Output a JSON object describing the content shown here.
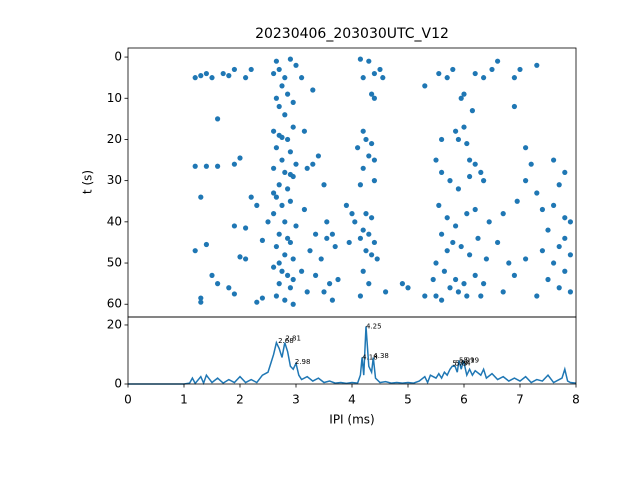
{
  "chart_data": [
    {
      "type": "scatter",
      "title": "20230406_203030UTC_V12",
      "ylabel": "t (s)",
      "color": "#1f77b4",
      "x": [
        1.2,
        1.3,
        1.4,
        1.5,
        1.7,
        1.8,
        1.9,
        2.1,
        1.2,
        1.4,
        1.6,
        1.6,
        2.0,
        1.3,
        1.9,
        2.2,
        1.9,
        2.1,
        2.3,
        1.2,
        1.4,
        1.5,
        1.3,
        1.3,
        1.6,
        1.8,
        2.0,
        2.1,
        1.9,
        2.3,
        2.4,
        2.5,
        2.4,
        2.2,
        2.65,
        2.7,
        2.8,
        2.9,
        3.0,
        2.6,
        2.75,
        2.85,
        2.65,
        2.95,
        2.7,
        2.8,
        2.6,
        2.7,
        2.85,
        2.95,
        2.65,
        2.9,
        2.75,
        3.0,
        2.6,
        2.8,
        2.95,
        2.7,
        2.85,
        2.65,
        2.9,
        2.75,
        2.6,
        2.8,
        3.0,
        2.7,
        2.9,
        2.65,
        2.8,
        2.95,
        2.6,
        2.75,
        2.85,
        2.7,
        2.9,
        2.65,
        2.8,
        2.95,
        2.75,
        2.9,
        2.6,
        2.85,
        2.7,
        2.95,
        3.1,
        3.3,
        3.15,
        3.4,
        3.2,
        3.3,
        3.5,
        3.15,
        3.35,
        3.55,
        3.7,
        3.25,
        3.45,
        3.1,
        3.35,
        3.6,
        3.2,
        3.5,
        3.75,
        3.65,
        3.55,
        3.65,
        4.15,
        4.3,
        4.4,
        4.2,
        4.35,
        4.4,
        4.2,
        4.25,
        4.35,
        4.1,
        4.3,
        4.4,
        4.2,
        4.15,
        4.4,
        4.25,
        4.35,
        4.2,
        4.3,
        4.15,
        4.4,
        4.25,
        4.35,
        4.2,
        4.3,
        4.15,
        4.0,
        3.9,
        4.05,
        3.95,
        4.5,
        4.6,
        4.55,
        4.45,
        4.9,
        5.0,
        5.3,
        5.5,
        5.6,
        5.55,
        5.7,
        5.8,
        5.85,
        5.9,
        6.0,
        6.05,
        6.1,
        6.2,
        5.6,
        5.75,
        5.9,
        6.1,
        6.3,
        6.35,
        5.55,
        5.7,
        5.85,
        6.05,
        6.2,
        6.45,
        5.6,
        5.7,
        5.8,
        5.95,
        6.1,
        6.25,
        6.4,
        5.5,
        5.65,
        5.85,
        6.0,
        6.2,
        6.35,
        5.5,
        5.6,
        5.75,
        5.9,
        6.05,
        6.3,
        5.45,
        5.3,
        6.0,
        6.2,
        6.35,
        6.5,
        6.15,
        5.95,
        6.6,
        6.9,
        7.0,
        7.3,
        6.9,
        7.1,
        7.2,
        7.1,
        7.3,
        6.95,
        6.7,
        7.4,
        7.6,
        7.8,
        7.9,
        7.5,
        7.8,
        7.7,
        7.4,
        7.9,
        7.1,
        6.8,
        7.6,
        7.8,
        7.5,
        6.9,
        7.7,
        7.3,
        7.9,
        7.6,
        7.8,
        7.7,
        6.6,
        6.7
      ],
      "values": [
        5,
        4.5,
        4,
        5,
        4,
        4.5,
        3,
        5,
        26.5,
        26.5,
        26.5,
        15,
        24.5,
        34,
        26,
        34,
        41,
        41.5,
        36,
        47,
        45.5,
        53,
        58.5,
        59.5,
        55,
        56,
        48.5,
        49,
        57.5,
        59.5,
        44.5,
        40,
        58.5,
        3,
        1,
        3,
        5,
        0.5,
        2,
        4,
        7,
        9,
        10,
        11,
        12,
        14,
        18,
        19,
        20,
        17,
        22,
        23,
        25,
        26,
        27,
        28,
        29,
        31,
        32,
        34,
        35,
        36,
        38,
        40,
        41,
        43,
        45,
        46,
        48,
        49,
        51,
        52,
        53,
        55,
        56,
        58,
        59,
        60,
        19.5,
        28.5,
        33,
        44,
        50,
        54,
        5,
        8,
        18,
        24,
        27,
        26,
        31,
        37,
        43,
        44,
        46,
        47,
        49,
        52,
        53,
        55,
        57,
        57,
        54,
        59,
        40,
        43,
        0.5,
        1,
        4,
        5,
        9,
        10,
        18,
        20,
        21,
        22,
        24,
        25,
        27,
        31,
        30,
        38,
        39,
        42,
        43,
        44,
        45,
        47,
        48,
        52,
        55,
        58,
        38,
        36,
        40,
        45,
        3,
        57,
        5,
        49,
        55,
        56,
        7,
        25,
        20,
        4,
        5,
        3,
        18,
        20,
        17,
        21,
        25,
        26,
        28,
        30,
        32,
        29,
        28,
        30,
        36,
        39,
        41,
        38,
        37,
        40,
        43,
        47,
        45,
        46,
        48,
        44,
        49,
        50,
        52,
        54,
        55,
        53,
        55,
        58,
        59,
        56,
        57,
        58,
        58,
        54,
        58,
        9,
        4,
        5,
        3,
        13,
        10,
        1,
        5,
        3,
        2,
        12,
        22,
        26,
        30,
        33,
        35,
        38,
        37,
        36,
        39,
        40,
        42,
        44,
        46,
        47,
        48,
        49,
        50,
        50,
        52,
        54,
        53,
        56,
        58,
        57,
        25,
        28,
        31,
        45,
        57
      ],
      "xlim": [
        0,
        8
      ],
      "ylim": [
        63.1,
        -2.2
      ],
      "yticks": [
        0,
        10,
        20,
        30,
        40,
        50,
        60
      ]
    },
    {
      "type": "line",
      "xlabel": "IPI (ms)",
      "color": "#1f77b4",
      "x": [
        0,
        1.0,
        1.1,
        1.15,
        1.2,
        1.3,
        1.35,
        1.4,
        1.5,
        1.6,
        1.7,
        1.8,
        1.9,
        2.0,
        2.1,
        2.2,
        2.3,
        2.4,
        2.5,
        2.55,
        2.6,
        2.65,
        2.7,
        2.75,
        2.8,
        2.85,
        2.9,
        2.95,
        3.0,
        3.05,
        3.1,
        3.2,
        3.3,
        3.4,
        3.5,
        3.6,
        3.7,
        3.8,
        3.9,
        4.0,
        4.1,
        4.15,
        4.18,
        4.21,
        4.25,
        4.3,
        4.35,
        4.38,
        4.42,
        4.5,
        4.6,
        4.7,
        4.8,
        4.9,
        5.0,
        5.1,
        5.2,
        5.3,
        5.35,
        5.4,
        5.5,
        5.55,
        5.6,
        5.65,
        5.7,
        5.75,
        5.79,
        5.84,
        5.88,
        5.91,
        5.95,
        5.99,
        6.05,
        6.1,
        6.15,
        6.2,
        6.3,
        6.35,
        6.4,
        6.5,
        6.6,
        6.7,
        6.8,
        6.9,
        7.0,
        7.1,
        7.2,
        7.3,
        7.4,
        7.5,
        7.6,
        7.7,
        7.75,
        7.8,
        7.85,
        7.9,
        8.0
      ],
      "values": [
        0,
        0,
        0.3,
        2,
        0.2,
        2.5,
        0.3,
        3,
        0.5,
        2,
        0.3,
        1.5,
        0.5,
        2.5,
        0.5,
        1.5,
        0.5,
        3,
        4,
        7,
        10,
        14,
        12,
        9,
        14,
        11,
        6,
        5,
        7,
        3,
        1.5,
        2.5,
        1,
        2,
        0.5,
        1,
        0.3,
        0.5,
        0.2,
        0.5,
        0.3,
        3,
        9,
        3,
        19.5,
        6,
        4,
        9,
        2,
        0.5,
        0.8,
        0.3,
        0.5,
        0.3,
        0.5,
        0.3,
        1,
        2.5,
        0.5,
        3,
        2,
        3.5,
        2,
        4,
        3,
        5,
        6,
        6,
        4,
        8,
        5,
        8,
        3,
        5,
        3,
        4.5,
        3,
        5,
        2,
        3.5,
        1.5,
        2.5,
        1,
        2,
        1,
        2.5,
        0.5,
        1.5,
        1,
        3,
        0.5,
        1.5,
        2,
        5,
        1,
        0.5,
        0.3
      ],
      "annotations": [
        {
          "x": 2.68,
          "y": 14.5
        },
        {
          "x": 2.81,
          "y": 15.5
        },
        {
          "x": 2.98,
          "y": 7.5
        },
        {
          "x": 4.18,
          "y": 9
        },
        {
          "x": 4.25,
          "y": 19.5
        },
        {
          "x": 4.38,
          "y": 9.5
        },
        {
          "x": 5.79,
          "y": 7
        },
        {
          "x": 5.84,
          "y": 7
        },
        {
          "x": 5.91,
          "y": 8
        },
        {
          "x": 5.99,
          "y": 8
        }
      ],
      "xlim": [
        0,
        8
      ],
      "ylim": [
        0,
        22.7
      ],
      "xticks": [
        0,
        1,
        2,
        3,
        4,
        5,
        6,
        7,
        8
      ],
      "yticks": [
        0,
        20
      ]
    }
  ]
}
